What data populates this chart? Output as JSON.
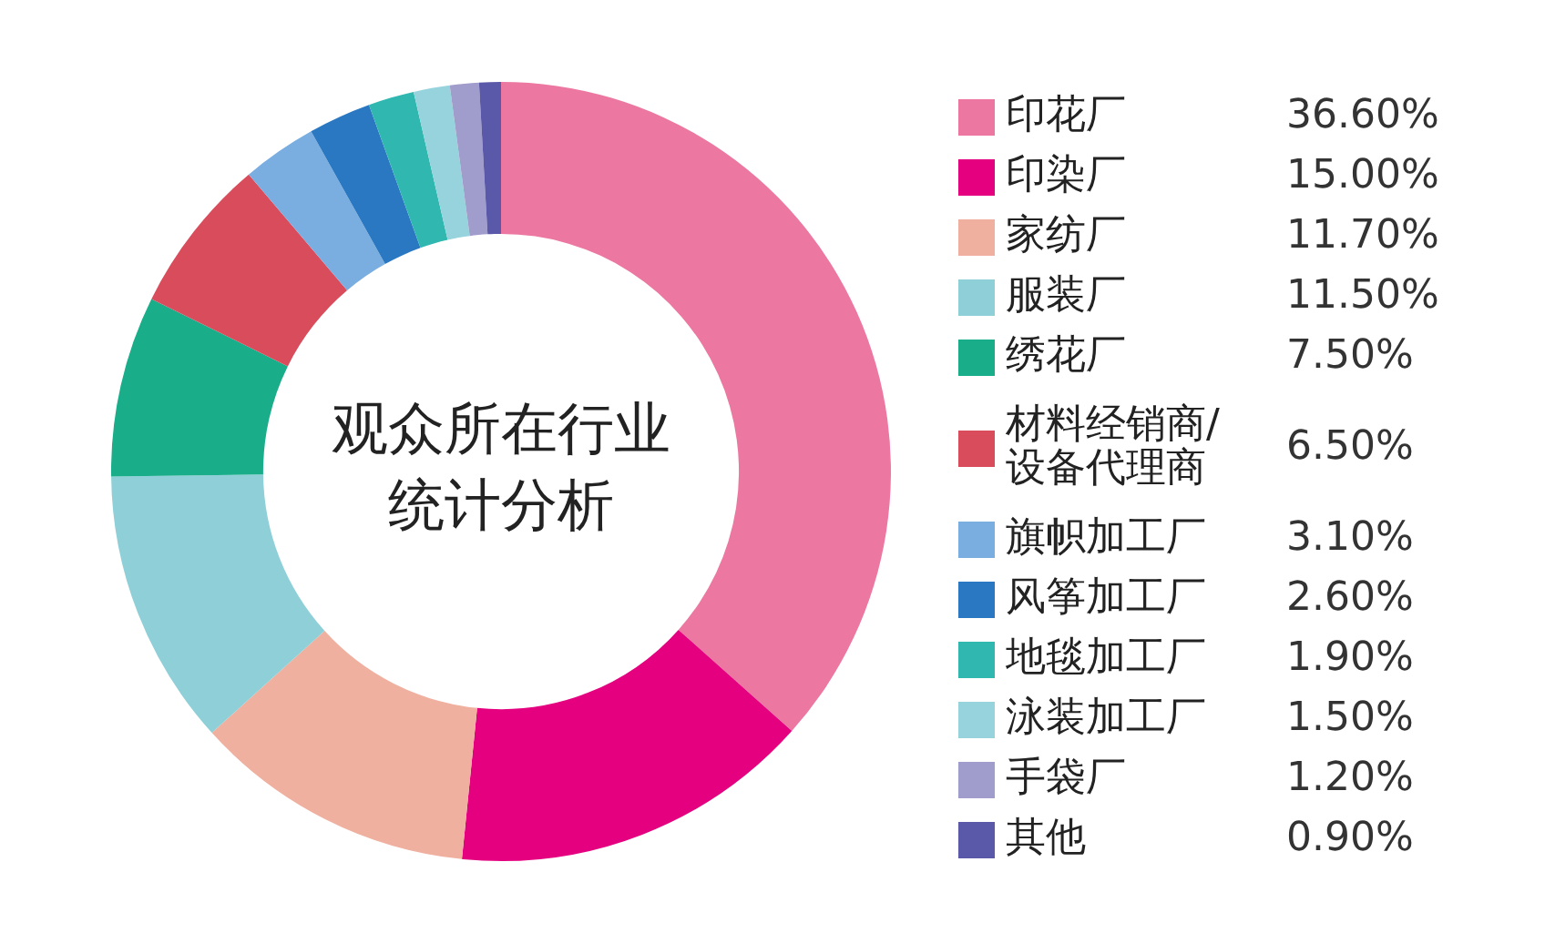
{
  "chart_data": {
    "type": "donut",
    "title": "观众所在行业统计分析",
    "categories": [
      "印花厂",
      "印染厂",
      "家纺厂",
      "服装厂",
      "绣花厂",
      "材料经销商/设备代理商",
      "旗帜加工厂",
      "风筝加工厂",
      "地毯加工厂",
      "泳装加工厂",
      "手袋厂",
      "其他"
    ],
    "values": [
      36.6,
      15.0,
      11.7,
      11.5,
      7.5,
      6.5,
      3.1,
      2.6,
      1.9,
      1.5,
      1.2,
      0.9
    ],
    "colors": [
      "#ec77a0",
      "#e4007f",
      "#f0b0a0",
      "#8fd0d8",
      "#1aad8a",
      "#d94c5c",
      "#7aaee0",
      "#2a78c2",
      "#30b8b0",
      "#96d3dc",
      "#a09ccc",
      "#5a58a8"
    ],
    "value_labels": [
      "36.60%",
      "15.00%",
      "11.70%",
      "11.50%",
      "7.50%",
      "6.50%",
      "3.10%",
      "2.60%",
      "1.90%",
      "1.50%",
      "1.20%",
      "0.90%"
    ],
    "legend": "right"
  }
}
